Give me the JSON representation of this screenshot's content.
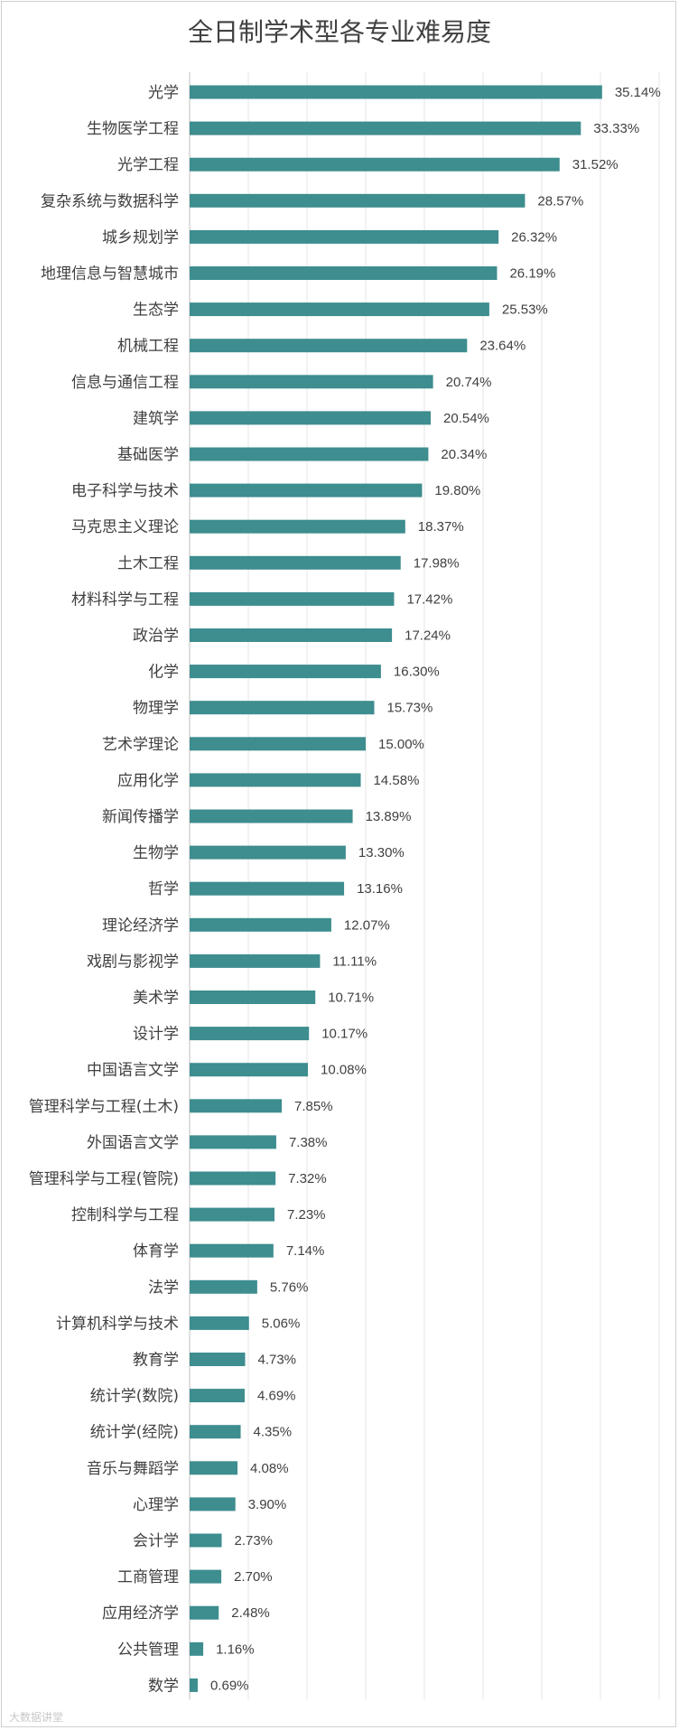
{
  "chart_data": {
    "type": "bar",
    "orientation": "horizontal",
    "title": "全日制学术型各专业难易度",
    "xlabel": "",
    "ylabel": "",
    "xlim": [
      0,
      40
    ],
    "grid": true,
    "bar_color": "#3e8d8f",
    "categories": [
      "光学",
      "生物医学工程",
      "光学工程",
      "复杂系统与数据科学",
      "城乡规划学",
      "地理信息与智慧城市",
      "生态学",
      "机械工程",
      "信息与通信工程",
      "建筑学",
      "基础医学",
      "电子科学与技术",
      "马克思主义理论",
      "土木工程",
      "材料科学与工程",
      "政治学",
      "化学",
      "物理学",
      "艺术学理论",
      "应用化学",
      "新闻传播学",
      "生物学",
      "哲学",
      "理论经济学",
      "戏剧与影视学",
      "美术学",
      "设计学",
      "中国语言文学",
      "管理科学与工程(土木)",
      "外国语言文学",
      "管理科学与工程(管院)",
      "控制科学与工程",
      "体育学",
      "法学",
      "计算机科学与技术",
      "教育学",
      "统计学(数院)",
      "统计学(经院)",
      "音乐与舞蹈学",
      "心理学",
      "会计学",
      "工商管理",
      "应用经济学",
      "公共管理",
      "数学"
    ],
    "values": [
      35.14,
      33.33,
      31.52,
      28.57,
      26.32,
      26.19,
      25.53,
      23.64,
      20.74,
      20.54,
      20.34,
      19.8,
      18.37,
      17.98,
      17.42,
      17.24,
      16.3,
      15.73,
      15.0,
      14.58,
      13.89,
      13.3,
      13.16,
      12.07,
      11.11,
      10.71,
      10.17,
      10.08,
      7.85,
      7.38,
      7.32,
      7.23,
      7.14,
      5.76,
      5.06,
      4.73,
      4.69,
      4.35,
      4.08,
      3.9,
      2.73,
      2.7,
      2.48,
      1.16,
      0.69
    ],
    "value_labels": [
      "35.14%",
      "33.33%",
      "31.52%",
      "28.57%",
      "26.32%",
      "26.19%",
      "25.53%",
      "23.64%",
      "20.74%",
      "20.54%",
      "20.34%",
      "19.80%",
      "18.37%",
      "17.98%",
      "17.42%",
      "17.24%",
      "16.30%",
      "15.73%",
      "15.00%",
      "14.58%",
      "13.89%",
      "13.30%",
      "13.16%",
      "12.07%",
      "11.11%",
      "10.71%",
      "10.17%",
      "10.08%",
      "7.85%",
      "7.38%",
      "7.32%",
      "7.23%",
      "7.14%",
      "5.76%",
      "5.06%",
      "4.73%",
      "4.69%",
      "4.35%",
      "4.08%",
      "3.90%",
      "2.73%",
      "2.70%",
      "2.48%",
      "1.16%",
      "0.69%"
    ]
  },
  "watermark": "大数据讲堂"
}
